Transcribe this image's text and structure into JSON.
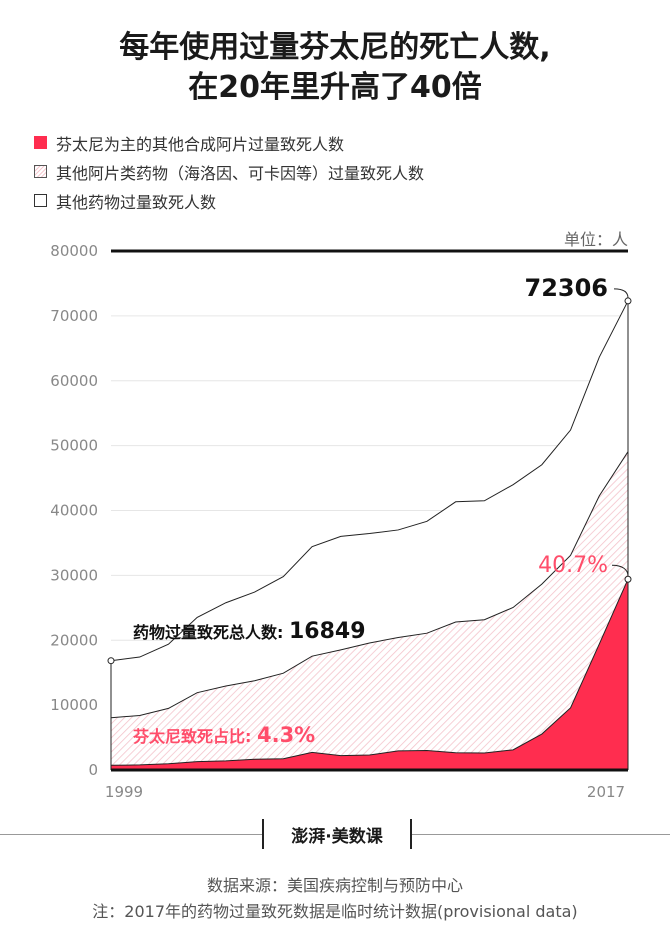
{
  "title_line1": "每年使用过量芬太尼的死亡人数,",
  "title_line2": "在20年里升高了40倍",
  "legend": [
    {
      "label": "芬太尼为主的其他合成阿片过量致死人数",
      "color": "#ff2d4f"
    },
    {
      "label": "其他阿片类药物（海洛因、可卡因等）过量致死人数",
      "color": "#f6c8cf"
    },
    {
      "label": "其他药物过量致死人数",
      "color": "#ffffff"
    }
  ],
  "unit": "单位：人",
  "logo": "澎湃·美数课",
  "source": "数据来源：美国疾病控制与预防中心",
  "note": "注：2017年的药物过量致死数据是临时统计数据(provisional data)",
  "chart_data": {
    "type": "area",
    "x": [
      1999,
      2000,
      2001,
      2002,
      2003,
      2004,
      2005,
      2006,
      2007,
      2008,
      2009,
      2010,
      2011,
      2012,
      2013,
      2014,
      2015,
      2016,
      2017
    ],
    "xlabels": [
      "1999",
      "2017"
    ],
    "ylim": [
      0,
      80000
    ],
    "yticks": [
      0,
      10000,
      20000,
      30000,
      40000,
      50000,
      60000,
      70000,
      80000
    ],
    "series": [
      {
        "name": "芬太尼为主的其他合成阿片过量致死人数",
        "values": [
          730,
          782,
          957,
          1295,
          1400,
          1664,
          1742,
          2707,
          2213,
          2306,
          2946,
          3007,
          2666,
          2628,
          3105,
          5544,
          9580,
          19413,
          29406
        ]
      },
      {
        "name": "其他阿片类药物（海洛因、可卡因等）过量致死人数",
        "values": [
          8050,
          8407,
          9496,
          11920,
          12940,
          13756,
          14918,
          17545,
          18516,
          19582,
          20422,
          21089,
          22810,
          23166,
          25052,
          28647,
          33091,
          42249,
          49068
        ]
      },
      {
        "name": "其他药物过量致死人数",
        "values": [
          16849,
          17415,
          19394,
          23518,
          25785,
          27424,
          29813,
          34425,
          36010,
          36450,
          37004,
          38329,
          41340,
          41502,
          43982,
          47055,
          52404,
          63632,
          72306
        ]
      }
    ],
    "annotations": {
      "start_total_label": "药物过量致死总人数:",
      "start_total_value": "16849",
      "end_total_value": "72306",
      "start_share_label": "芬太尼致死占比:",
      "start_share_value": "4.3%",
      "end_share_value": "40.7%"
    }
  }
}
